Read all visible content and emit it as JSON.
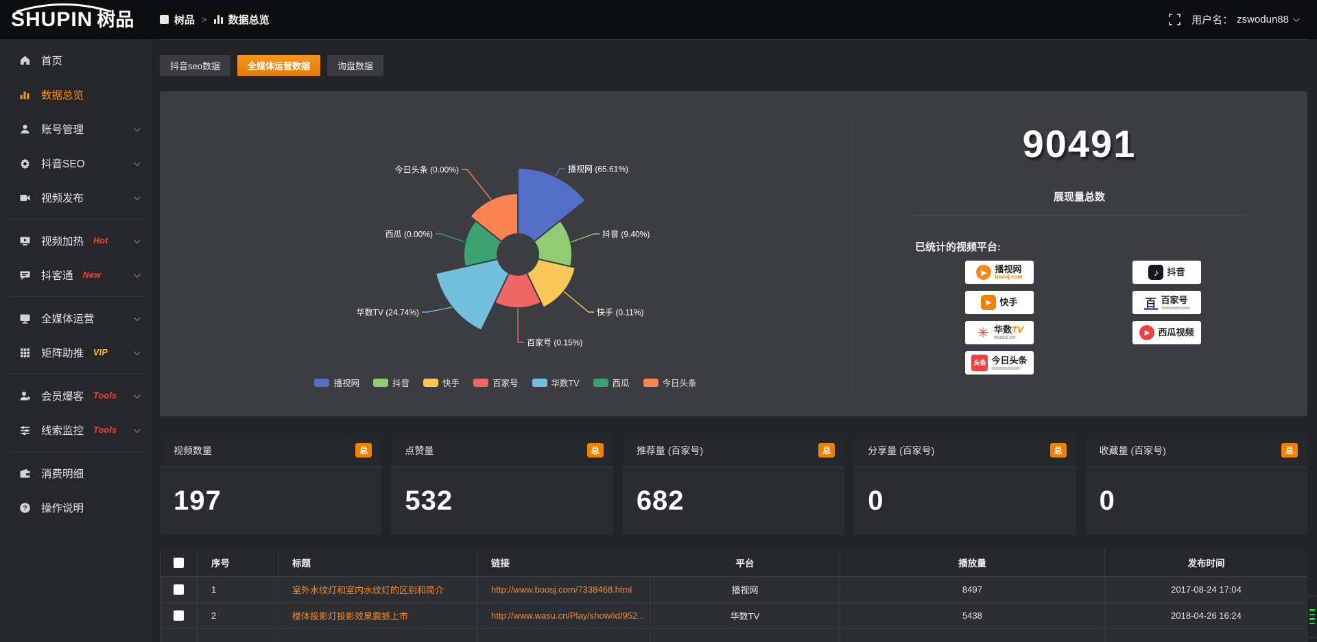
{
  "topbar": {
    "logo_en": "SHUPIN",
    "logo_cn": "树品",
    "breadcrumb": {
      "root": "树品",
      "separator": ">",
      "current": "数据总览"
    },
    "username_label": "用户名：",
    "username": "zswodun88"
  },
  "sidebar": {
    "items": [
      {
        "icon": "home",
        "label": "首页"
      },
      {
        "icon": "chart",
        "label": "数据总览",
        "active": true
      },
      {
        "icon": "user",
        "label": "账号管理",
        "chevron": true
      },
      {
        "icon": "gear",
        "label": "抖音SEO",
        "chevron": true
      },
      {
        "icon": "publish",
        "label": "视频发布",
        "chevron": true
      },
      {
        "divider": true
      },
      {
        "icon": "heat",
        "label": "视频加热",
        "tag": "Hot",
        "tag_color": "red",
        "chevron": true
      },
      {
        "icon": "chat",
        "label": "抖客通",
        "tag": "New",
        "tag_color": "red",
        "chevron": true
      },
      {
        "divider": true
      },
      {
        "icon": "monitor",
        "label": "全媒体运营",
        "chevron": true
      },
      {
        "icon": "grid",
        "label": "矩阵助推",
        "tag": "VIP",
        "tag_color": "gold",
        "chevron": true
      },
      {
        "divider": true
      },
      {
        "icon": "userstar",
        "label": "会员爆客",
        "tag": "Tools",
        "tag_color": "red",
        "chevron": true
      },
      {
        "icon": "sliders",
        "label": "线索监控",
        "tag": "Tools",
        "tag_color": "red",
        "chevron": true
      },
      {
        "divider": true
      },
      {
        "icon": "wallet",
        "label": "消费明细"
      },
      {
        "icon": "question",
        "label": "操作说明"
      }
    ]
  },
  "tabs": [
    {
      "label": "抖音seo数据",
      "active": false
    },
    {
      "label": "全媒体运营数据",
      "active": true
    },
    {
      "label": "询盘数据",
      "active": false
    }
  ],
  "chart_data": {
    "type": "pie",
    "variant": "nightingale-rose",
    "categories": [
      "播视网",
      "抖音",
      "快手",
      "百家号",
      "华数TV",
      "西瓜",
      "今日头条"
    ],
    "values": [
      65.61,
      9.4,
      0.11,
      0.15,
      24.74,
      0.0,
      0.0
    ],
    "unit": "%",
    "label_format": "{name} ({value}%)",
    "colors": [
      "#5470c6",
      "#91cc75",
      "#fac858",
      "#ee6666",
      "#73c0de",
      "#3ba272",
      "#fc8452"
    ],
    "legend_position": "bottom",
    "legend": [
      "播视网",
      "抖音",
      "快手",
      "百家号",
      "华数TV",
      "西瓜",
      "今日头条"
    ],
    "display_radii": [
      126,
      79,
      86,
      78,
      123,
      79,
      89
    ],
    "inner_radius": 30
  },
  "summary": {
    "total": "90491",
    "total_label": "展现量总数",
    "platforms_label": "已统计的视频平台:",
    "platforms": [
      {
        "icon": "boosj",
        "name": "播视网",
        "sub": "boosj.com"
      },
      {
        "icon": "douyin",
        "name": "抖音"
      },
      {
        "icon": "kuaishou",
        "name": "快手"
      },
      {
        "icon": "baijiahao",
        "name": "百家号",
        "tagline": true
      },
      {
        "icon": "wasu",
        "name": "华数",
        "name2": "TV",
        "sub": "wasu.cn",
        "sub_gray": true
      },
      {
        "icon": "xigua",
        "name": "西瓜视频"
      },
      {
        "icon": "toutiao",
        "name": "今日头条",
        "tagline": true
      }
    ]
  },
  "stat_cards": [
    {
      "title": "视频数量",
      "badge": "总",
      "value": "197"
    },
    {
      "title": "点赞量",
      "badge": "总",
      "value": "532"
    },
    {
      "title": "推荐量 (百家号)",
      "badge": "总",
      "value": "682"
    },
    {
      "title": "分享量 (百家号)",
      "badge": "总",
      "value": "0"
    },
    {
      "title": "收藏量 (百家号)",
      "badge": "总",
      "value": "0"
    }
  ],
  "table": {
    "headers": [
      "序号",
      "标题",
      "链接",
      "平台",
      "播放量",
      "发布时间"
    ],
    "rows": [
      {
        "seq": "1",
        "title": "室外水纹灯和室内水纹灯的区别和简介",
        "link": "http://www.boosj.com/7338468.html",
        "platform": "播视网",
        "plays": "8497",
        "time": "2017-08-24 17:04"
      },
      {
        "seq": "2",
        "title": "楼体投影灯投影效果震撼上市",
        "link": "http://www.wasu.cn/Play/show/id/952...",
        "platform": "华数TV",
        "plays": "5438",
        "time": "2018-04-26 16:24"
      }
    ]
  }
}
